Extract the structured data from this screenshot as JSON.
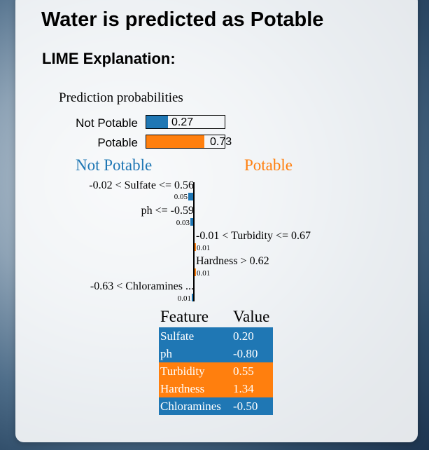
{
  "page": {
    "title": "Water is predicted as Potable",
    "subtitle": "LIME Explanation:"
  },
  "prediction_probabilities": {
    "title": "Prediction probabilities",
    "items": [
      {
        "label": "Not Potable",
        "value": "0.27",
        "fraction": 0.27,
        "color": "#1f77b4"
      },
      {
        "label": "Potable",
        "value": "0.73",
        "fraction": 0.73,
        "color": "#ff7f0e"
      }
    ]
  },
  "explanation": {
    "negative_class": "Not Potable",
    "positive_class": "Potable",
    "negative_color": "#1f77b4",
    "positive_color": "#ff7f0e",
    "features": [
      {
        "condition": "-0.02 < Sulfate <= 0.56",
        "weight": "0.05",
        "weight_value": 0.05,
        "side": "negative"
      },
      {
        "condition": "ph <= -0.59",
        "weight": "0.03",
        "weight_value": 0.03,
        "side": "negative"
      },
      {
        "condition": "-0.01 < Turbidity <= 0.67",
        "weight": "0.01",
        "weight_value": 0.005,
        "side": "positive"
      },
      {
        "condition": "Hardness > 0.62",
        "weight": "0.01",
        "weight_value": 0.005,
        "side": "positive"
      },
      {
        "condition": "-0.63 < Chloramines ...",
        "weight": "0.01",
        "weight_value": 0.005,
        "side": "negative"
      }
    ]
  },
  "feature_table": {
    "headers": [
      "Feature",
      "Value"
    ],
    "rows": [
      {
        "feature": "Sulfate",
        "value": "0.20",
        "color": "#1f77b4"
      },
      {
        "feature": "ph",
        "value": "-0.80",
        "color": "#1f77b4"
      },
      {
        "feature": "Turbidity",
        "value": "0.55",
        "color": "#ff7f0e"
      },
      {
        "feature": "Hardness",
        "value": "1.34",
        "color": "#ff7f0e"
      },
      {
        "feature": "Chloramines",
        "value": "-0.50",
        "color": "#1f77b4"
      }
    ]
  }
}
